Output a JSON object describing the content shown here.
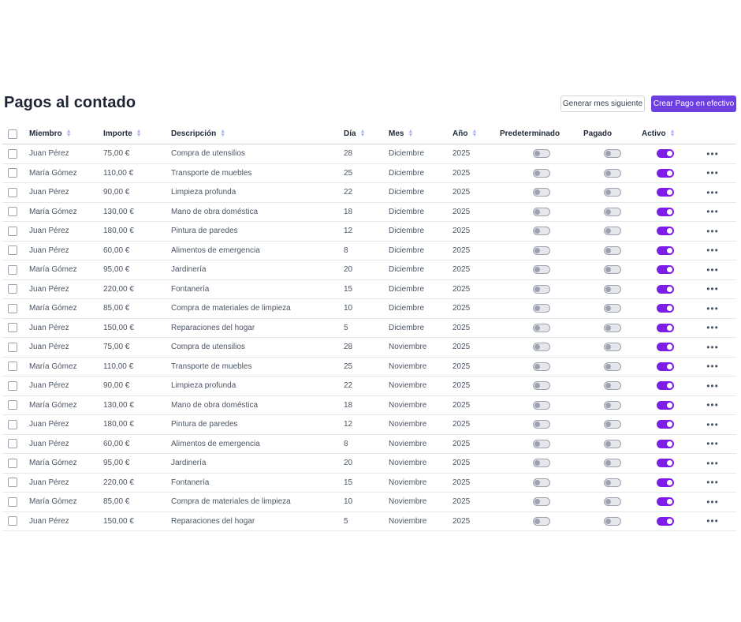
{
  "page": {
    "title": "Pagos al contado"
  },
  "toolbar": {
    "generate_label": "Generar mes siguiente",
    "create_label": "Crear Pago en efectivo"
  },
  "table": {
    "headers": {
      "member": "Miembro",
      "amount": "Importe",
      "description": "Descripción",
      "day": "Día",
      "month": "Mes",
      "year": "Año",
      "default": "Predeterminado",
      "paid": "Pagado",
      "active": "Activo"
    },
    "more_glyph": "•••",
    "rows": [
      {
        "member": "Juan Pérez",
        "amount": "75,00 €",
        "description": "Compra de utensilios",
        "day": "28",
        "month": "Diciembre",
        "year": "2025",
        "default": false,
        "paid": false,
        "active": true
      },
      {
        "member": "María Gómez",
        "amount": "110,00 €",
        "description": "Transporte de muebles",
        "day": "25",
        "month": "Diciembre",
        "year": "2025",
        "default": false,
        "paid": false,
        "active": true
      },
      {
        "member": "Juan Pérez",
        "amount": "90,00 €",
        "description": "Limpieza profunda",
        "day": "22",
        "month": "Diciembre",
        "year": "2025",
        "default": false,
        "paid": false,
        "active": true
      },
      {
        "member": "María Gómez",
        "amount": "130,00 €",
        "description": "Mano de obra doméstica",
        "day": "18",
        "month": "Diciembre",
        "year": "2025",
        "default": false,
        "paid": false,
        "active": true
      },
      {
        "member": "Juan Pérez",
        "amount": "180,00 €",
        "description": "Pintura de paredes",
        "day": "12",
        "month": "Diciembre",
        "year": "2025",
        "default": false,
        "paid": false,
        "active": true
      },
      {
        "member": "Juan Pérez",
        "amount": "60,00 €",
        "description": "Alimentos de emergencia",
        "day": "8",
        "month": "Diciembre",
        "year": "2025",
        "default": false,
        "paid": false,
        "active": true
      },
      {
        "member": "María Gómez",
        "amount": "95,00 €",
        "description": "Jardinería",
        "day": "20",
        "month": "Diciembre",
        "year": "2025",
        "default": false,
        "paid": false,
        "active": true
      },
      {
        "member": "Juan Pérez",
        "amount": "220,00 €",
        "description": "Fontanería",
        "day": "15",
        "month": "Diciembre",
        "year": "2025",
        "default": false,
        "paid": false,
        "active": true
      },
      {
        "member": "María Gómez",
        "amount": "85,00 €",
        "description": "Compra de materiales de limpieza",
        "day": "10",
        "month": "Diciembre",
        "year": "2025",
        "default": false,
        "paid": false,
        "active": true
      },
      {
        "member": "Juan Pérez",
        "amount": "150,00 €",
        "description": "Reparaciones del hogar",
        "day": "5",
        "month": "Diciembre",
        "year": "2025",
        "default": false,
        "paid": false,
        "active": true
      },
      {
        "member": "Juan Pérez",
        "amount": "75,00 €",
        "description": "Compra de utensilios",
        "day": "28",
        "month": "Noviembre",
        "year": "2025",
        "default": false,
        "paid": false,
        "active": true
      },
      {
        "member": "María Gómez",
        "amount": "110,00 €",
        "description": "Transporte de muebles",
        "day": "25",
        "month": "Noviembre",
        "year": "2025",
        "default": false,
        "paid": false,
        "active": true
      },
      {
        "member": "Juan Pérez",
        "amount": "90,00 €",
        "description": "Limpieza profunda",
        "day": "22",
        "month": "Noviembre",
        "year": "2025",
        "default": false,
        "paid": false,
        "active": true
      },
      {
        "member": "María Gómez",
        "amount": "130,00 €",
        "description": "Mano de obra doméstica",
        "day": "18",
        "month": "Noviembre",
        "year": "2025",
        "default": false,
        "paid": false,
        "active": true
      },
      {
        "member": "Juan Pérez",
        "amount": "180,00 €",
        "description": "Pintura de paredes",
        "day": "12",
        "month": "Noviembre",
        "year": "2025",
        "default": false,
        "paid": false,
        "active": true
      },
      {
        "member": "Juan Pérez",
        "amount": "60,00 €",
        "description": "Alimentos de emergencia",
        "day": "8",
        "month": "Noviembre",
        "year": "2025",
        "default": false,
        "paid": false,
        "active": true
      },
      {
        "member": "María Gómez",
        "amount": "95,00 €",
        "description": "Jardinería",
        "day": "20",
        "month": "Noviembre",
        "year": "2025",
        "default": false,
        "paid": false,
        "active": true
      },
      {
        "member": "Juan Pérez",
        "amount": "220,00 €",
        "description": "Fontanería",
        "day": "15",
        "month": "Noviembre",
        "year": "2025",
        "default": false,
        "paid": false,
        "active": true
      },
      {
        "member": "María Gómez",
        "amount": "85,00 €",
        "description": "Compra de materiales de limpieza",
        "day": "10",
        "month": "Noviembre",
        "year": "2025",
        "default": false,
        "paid": false,
        "active": true
      },
      {
        "member": "Juan Pérez",
        "amount": "150,00 €",
        "description": "Reparaciones del hogar",
        "day": "5",
        "month": "Noviembre",
        "year": "2025",
        "default": false,
        "paid": false,
        "active": true
      }
    ]
  },
  "colors": {
    "accent": "#6d3fe0",
    "toggle_on": "#7c1de8",
    "toggle_off": "#e5e7eb"
  }
}
